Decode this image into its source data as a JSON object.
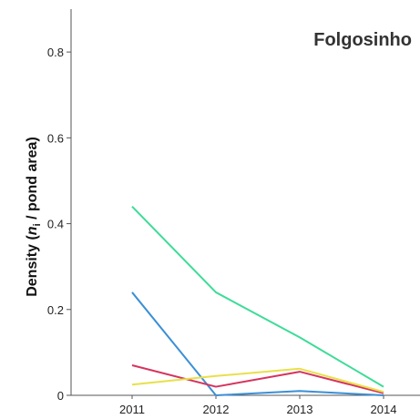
{
  "chart_data": {
    "type": "line",
    "title": "Folgosinho",
    "ylabel_parts": {
      "before": "Density (",
      "italic": "n",
      "subscript": "i",
      "after": " / pond area)"
    },
    "xlabel": "",
    "x": [
      "2011",
      "2012",
      "2013",
      "2014"
    ],
    "ylim": [
      0,
      0.9
    ],
    "yticks": [
      0,
      0.2,
      0.4,
      0.6,
      0.8
    ],
    "ytick_labels": [
      "0",
      "0.2",
      "0.4",
      "0.6",
      "0.8"
    ],
    "grid": false,
    "series": [
      {
        "color": "#3ddc97",
        "values": [
          0.44,
          0.24,
          0.135,
          0.02
        ]
      },
      {
        "color": "#3b8fd6",
        "values": [
          0.24,
          0.0,
          0.01,
          0.0
        ]
      },
      {
        "color": "#d6335e",
        "values": [
          0.07,
          0.02,
          0.055,
          0.005
        ]
      },
      {
        "color": "#e8e04a",
        "values": [
          0.025,
          0.045,
          0.062,
          0.008
        ]
      }
    ]
  }
}
